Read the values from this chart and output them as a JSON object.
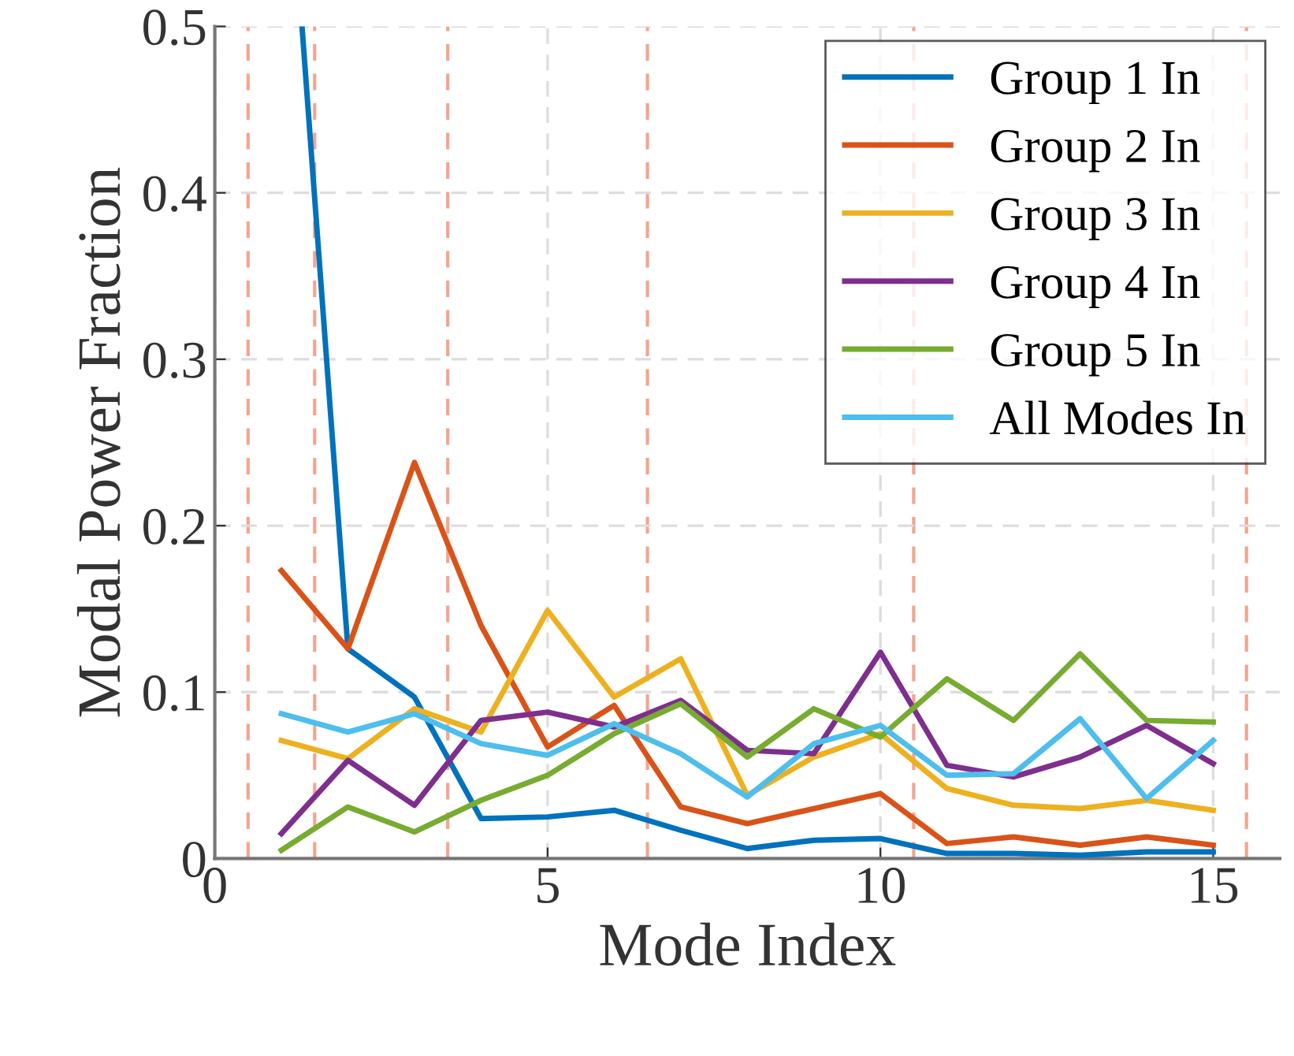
{
  "chart_data": {
    "type": "line",
    "xlabel": "Mode Index",
    "ylabel": "Modal Power Fraction",
    "x": [
      1,
      2,
      3,
      4,
      5,
      6,
      7,
      8,
      9,
      10,
      11,
      12,
      13,
      14,
      15
    ],
    "series": [
      {
        "name": "Group 1 In",
        "color": "#0072bd",
        "x": [
          1.31,
          2,
          3,
          4,
          5,
          6,
          7,
          8,
          9,
          10,
          11,
          12,
          13,
          14,
          15
        ],
        "values": [
          0.5,
          0.126,
          0.097,
          0.024,
          0.025,
          0.029,
          0.017,
          0.006,
          0.011,
          0.012,
          0.003,
          0.003,
          0.002,
          0.004,
          0.004
        ]
      },
      {
        "name": "Group 2 In",
        "color": "#d95319",
        "values": [
          0.173,
          0.126,
          0.238,
          0.14,
          0.067,
          0.092,
          0.031,
          0.021,
          0.03,
          0.039,
          0.009,
          0.013,
          0.008,
          0.013,
          0.008
        ]
      },
      {
        "name": "Group 3 In",
        "color": "#edb120",
        "values": [
          0.071,
          0.06,
          0.09,
          0.076,
          0.149,
          0.097,
          0.12,
          0.038,
          0.061,
          0.075,
          0.042,
          0.032,
          0.03,
          0.035,
          0.029
        ]
      },
      {
        "name": "Group 4 In",
        "color": "#7e2f8e",
        "values": [
          0.015,
          0.059,
          0.032,
          0.083,
          0.088,
          0.079,
          0.095,
          0.065,
          0.063,
          0.124,
          0.056,
          0.049,
          0.061,
          0.08,
          0.057
        ]
      },
      {
        "name": "Group 5 In",
        "color": "#77ac30",
        "values": [
          0.005,
          0.031,
          0.016,
          0.035,
          0.05,
          0.075,
          0.093,
          0.061,
          0.09,
          0.073,
          0.108,
          0.083,
          0.123,
          0.083,
          0.082
        ]
      },
      {
        "name": "All Modes In",
        "color": "#4dbeee",
        "values": [
          0.087,
          0.076,
          0.087,
          0.069,
          0.062,
          0.081,
          0.063,
          0.037,
          0.069,
          0.08,
          0.05,
          0.051,
          0.084,
          0.036,
          0.071
        ]
      }
    ],
    "xlim": [
      0,
      16
    ],
    "ylim": [
      0,
      0.5
    ],
    "xticks": [
      0,
      5,
      10,
      15
    ],
    "yticks": [
      0,
      0.1,
      0.2,
      0.3,
      0.4,
      0.5
    ],
    "ref_lines": [
      {
        "axis": "x",
        "value": 0.5,
        "color": "#f4a491",
        "line_style": "dashed"
      },
      {
        "axis": "x",
        "value": 1.5,
        "color": "#f4a491",
        "line_style": "dashed"
      },
      {
        "axis": "x",
        "value": 3.5,
        "color": "#f4a491",
        "line_style": "dashed"
      },
      {
        "axis": "x",
        "value": 6.5,
        "color": "#f4a491",
        "line_style": "dashed"
      },
      {
        "axis": "x",
        "value": 10.5,
        "color": "#f4a491",
        "line_style": "dashed"
      },
      {
        "axis": "x",
        "value": 15.5,
        "color": "#f4a491",
        "line_style": "dashed"
      }
    ],
    "grid": true,
    "legend": "top right",
    "marker": "none",
    "line_style": "solid"
  }
}
